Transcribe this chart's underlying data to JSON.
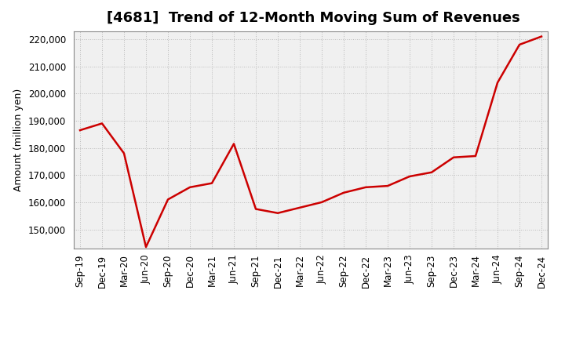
{
  "title": "[4681]  Trend of 12-Month Moving Sum of Revenues",
  "ylabel": "Amount (million yen)",
  "background_color": "#ffffff",
  "plot_bg_color": "#f0f0f0",
  "line_color": "#cc0000",
  "grid_color": "#bbbbbb",
  "x_labels": [
    "Sep-19",
    "Dec-19",
    "Mar-20",
    "Jun-20",
    "Sep-20",
    "Dec-20",
    "Mar-21",
    "Jun-21",
    "Sep-21",
    "Dec-21",
    "Mar-22",
    "Jun-22",
    "Sep-22",
    "Dec-22",
    "Mar-23",
    "Jun-23",
    "Sep-23",
    "Dec-23",
    "Mar-24",
    "Jun-24",
    "Sep-24",
    "Dec-24"
  ],
  "values": [
    186500,
    189000,
    178000,
    143500,
    161000,
    165500,
    167000,
    181500,
    157500,
    156000,
    158000,
    160000,
    163500,
    165500,
    166000,
    169500,
    171000,
    176500,
    177000,
    204000,
    218000,
    221000
  ],
  "ylim": [
    143000,
    223000
  ],
  "yticks": [
    150000,
    160000,
    170000,
    180000,
    190000,
    200000,
    210000,
    220000
  ],
  "title_fontsize": 13,
  "label_fontsize": 9,
  "tick_fontsize": 8.5
}
